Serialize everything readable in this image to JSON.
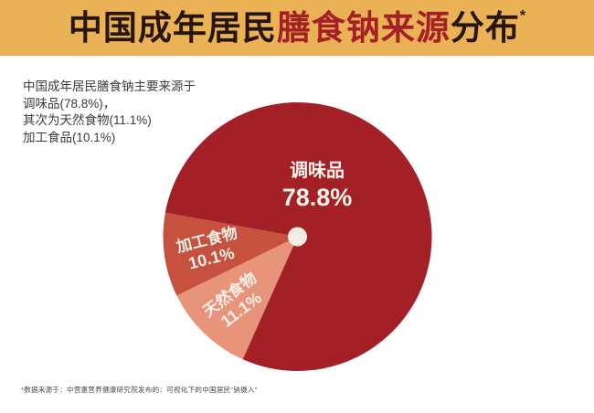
{
  "theme": {
    "page_bg": "#FFFFFF",
    "gold": "#EAB254",
    "dark_text": "#27150A",
    "red": "#A32026",
    "label_cream": "#F7F2EA",
    "summary_text": "#3E3B38",
    "footnote_text": "#4A4744"
  },
  "header": {
    "title": {
      "prefix": "中国成年居民",
      "highlight": "膳食钠来源",
      "suffix": "分布",
      "asterisk": "*"
    }
  },
  "summary": {
    "lines": [
      "中国成年居民膳食钠主要来源于",
      "调味品(78.8%)，",
      "其次为天然食物(11.1%)",
      "加工食品(10.1%)"
    ]
  },
  "chart_data": {
    "type": "pie",
    "title": "中国成年居民膳食钠来源分布*",
    "unit": "%",
    "start_angle_deg": 114,
    "clockwise": true,
    "legend": "none",
    "labels_on_slices": true,
    "center_dot_color": "#F2EEE6",
    "slices": [
      {
        "id": "natural-food",
        "label": "天然食物",
        "value": 11.1,
        "value_label": "11.1%",
        "color": "#E8947B"
      },
      {
        "id": "processed-food",
        "label": "加工食物",
        "value": 10.1,
        "value_label": "10.1%",
        "color": "#C6513F"
      },
      {
        "id": "seasoning",
        "label": "调味品",
        "value": 78.8,
        "value_label": "78.8%",
        "color": "#A32026"
      }
    ]
  },
  "footnote": {
    "text": "*数据来源于：中营惠营养健康研究院发布的：可视化下的中国居民“钠摄入”"
  }
}
